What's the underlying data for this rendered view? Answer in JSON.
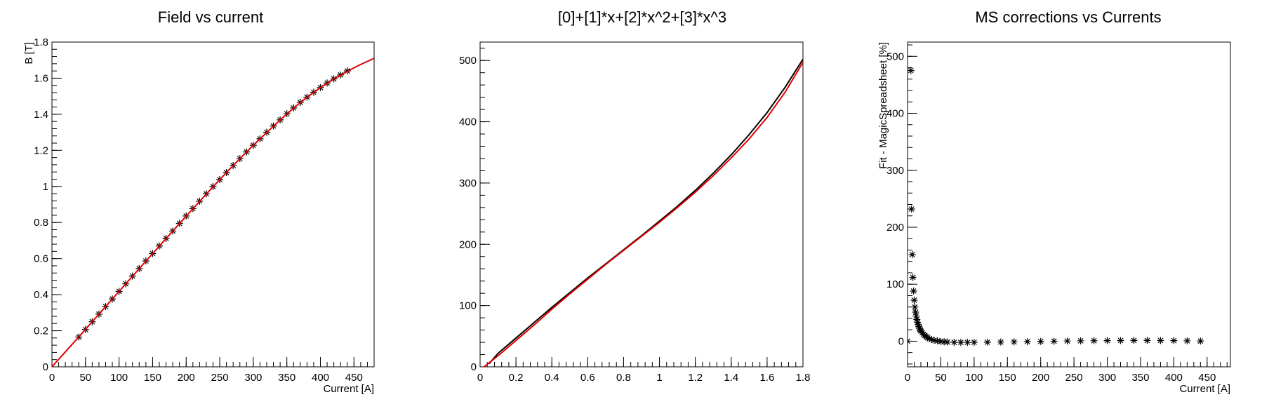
{
  "chart_data": [
    {
      "type": "scatter",
      "title": "Field vs current",
      "xlabel": "Current [A]",
      "ylabel": "B [T]",
      "xlim": [
        0,
        480
      ],
      "ylim": [
        0,
        1.8
      ],
      "xticks": [
        0,
        50,
        100,
        150,
        200,
        250,
        300,
        350,
        400,
        450
      ],
      "yticks": [
        0,
        0.2,
        0.4,
        0.6,
        0.8,
        1,
        1.2,
        1.4,
        1.6,
        1.8
      ],
      "xtick_labels": [
        "0",
        "50",
        "100",
        "150",
        "200",
        "250",
        "300",
        "350",
        "400",
        "450"
      ],
      "ytick_labels": [
        "0",
        "0.2",
        "0.4",
        "0.6",
        "0.8",
        "1",
        "1.2",
        "1.4",
        "1.6",
        "1.8"
      ],
      "series": [
        {
          "kind": "points",
          "marker": "*",
          "color": "#000000",
          "x": [
            40,
            50,
            60,
            70,
            80,
            90,
            100,
            110,
            120,
            130,
            140,
            150,
            160,
            170,
            180,
            190,
            200,
            210,
            220,
            230,
            240,
            250,
            260,
            270,
            280,
            290,
            300,
            310,
            320,
            330,
            340,
            350,
            360,
            370,
            380,
            390,
            400,
            410,
            420,
            430,
            440
          ],
          "y": [
            0.165,
            0.207,
            0.25,
            0.292,
            0.334,
            0.376,
            0.418,
            0.46,
            0.503,
            0.545,
            0.587,
            0.628,
            0.67,
            0.712,
            0.753,
            0.795,
            0.836,
            0.877,
            0.918,
            0.959,
            0.999,
            1.038,
            1.077,
            1.116,
            1.154,
            1.191,
            1.228,
            1.264,
            1.3,
            1.335,
            1.369,
            1.403,
            1.435,
            1.466,
            1.495,
            1.522,
            1.548,
            1.573,
            1.596,
            1.618,
            1.64
          ]
        },
        {
          "kind": "line",
          "color": "#e00000",
          "x": [
            0,
            20,
            40,
            60,
            80,
            100,
            120,
            140,
            160,
            180,
            200,
            220,
            240,
            260,
            280,
            300,
            320,
            340,
            360,
            380,
            400,
            420,
            440,
            460,
            480
          ],
          "y": [
            0.0,
            0.083,
            0.166,
            0.25,
            0.334,
            0.418,
            0.502,
            0.586,
            0.669,
            0.752,
            0.835,
            0.917,
            0.998,
            1.077,
            1.154,
            1.228,
            1.299,
            1.368,
            1.434,
            1.494,
            1.548,
            1.596,
            1.638,
            1.676,
            1.71
          ]
        }
      ]
    },
    {
      "type": "line",
      "title": "[0]+[1]*x+[2]*x^2+[3]*x^3",
      "xlabel": "",
      "ylabel": "",
      "xlim": [
        0,
        1.8
      ],
      "ylim": [
        0,
        530
      ],
      "xticks": [
        0,
        0.2,
        0.4,
        0.6,
        0.8,
        1,
        1.2,
        1.4,
        1.6,
        1.8
      ],
      "yticks": [
        0,
        100,
        200,
        300,
        400,
        500
      ],
      "xtick_labels": [
        "0",
        "0.2",
        "0.4",
        "0.6",
        "0.8",
        "1",
        "1.2",
        "1.4",
        "1.6",
        "1.8"
      ],
      "ytick_labels": [
        "0",
        "100",
        "200",
        "300",
        "400",
        "500"
      ],
      "series": [
        {
          "kind": "line",
          "color": "#000000",
          "x": [
            0.05,
            0.1,
            0.2,
            0.3,
            0.4,
            0.5,
            0.6,
            0.7,
            0.8,
            0.9,
            1.0,
            1.1,
            1.2,
            1.3,
            1.4,
            1.5,
            1.6,
            1.7,
            1.8
          ],
          "y": [
            5,
            22,
            47,
            72,
            97,
            121,
            145,
            168,
            191,
            214,
            238,
            262,
            288,
            316,
            346,
            379,
            415,
            456,
            502
          ]
        },
        {
          "kind": "line",
          "color": "#e00000",
          "x": [
            0.0,
            0.1,
            0.2,
            0.3,
            0.4,
            0.5,
            0.6,
            0.7,
            0.8,
            0.9,
            1.0,
            1.1,
            1.2,
            1.3,
            1.4,
            1.5,
            1.6,
            1.7,
            1.8
          ],
          "y": [
            -5,
            18,
            43,
            68,
            94,
            119,
            143,
            167,
            190,
            213,
            236,
            260,
            285,
            312,
            341,
            372,
            407,
            448,
            497
          ]
        }
      ]
    },
    {
      "type": "scatter",
      "title": "MS corrections vs Currents",
      "xlabel": "Current [A]",
      "ylabel": "Fit - MagicSpreadsheet [%]",
      "xlim": [
        0,
        485
      ],
      "ylim": [
        -45,
        525
      ],
      "xticks": [
        0,
        50,
        100,
        150,
        200,
        250,
        300,
        350,
        400,
        450
      ],
      "yticks": [
        0,
        100,
        200,
        300,
        400,
        500
      ],
      "xtick_labels": [
        "0",
        "50",
        "100",
        "150",
        "200",
        "250",
        "300",
        "350",
        "400",
        "450"
      ],
      "ytick_labels": [
        "0",
        "100",
        "200",
        "300",
        "400",
        "500"
      ],
      "series": [
        {
          "kind": "points",
          "marker": "*",
          "color": "#000000",
          "x": [
            0,
            5,
            6,
            7,
            8,
            9,
            10,
            11,
            12,
            13,
            14,
            15,
            16,
            17,
            18,
            19,
            20,
            22,
            24,
            26,
            28,
            30,
            33,
            36,
            40,
            45,
            50,
            55,
            60,
            70,
            80,
            90,
            100,
            120,
            140,
            160,
            180,
            200,
            220,
            240,
            260,
            280,
            300,
            320,
            340,
            360,
            380,
            400,
            420,
            440
          ],
          "y": [
            0,
            475,
            232,
            152,
            112,
            88,
            72,
            60,
            51,
            44,
            38,
            33,
            29,
            26,
            23,
            20,
            18,
            15,
            12,
            10,
            8,
            6,
            4.5,
            3,
            1.5,
            0.5,
            -0.5,
            -1,
            -1.5,
            -2,
            -2,
            -2,
            -2,
            -1.8,
            -1.5,
            -1.2,
            -0.8,
            -0.4,
            0,
            0.3,
            0.6,
            0.8,
            1,
            1.2,
            1.3,
            1.3,
            1.2,
            1,
            0.6,
            0.2
          ]
        }
      ]
    }
  ]
}
